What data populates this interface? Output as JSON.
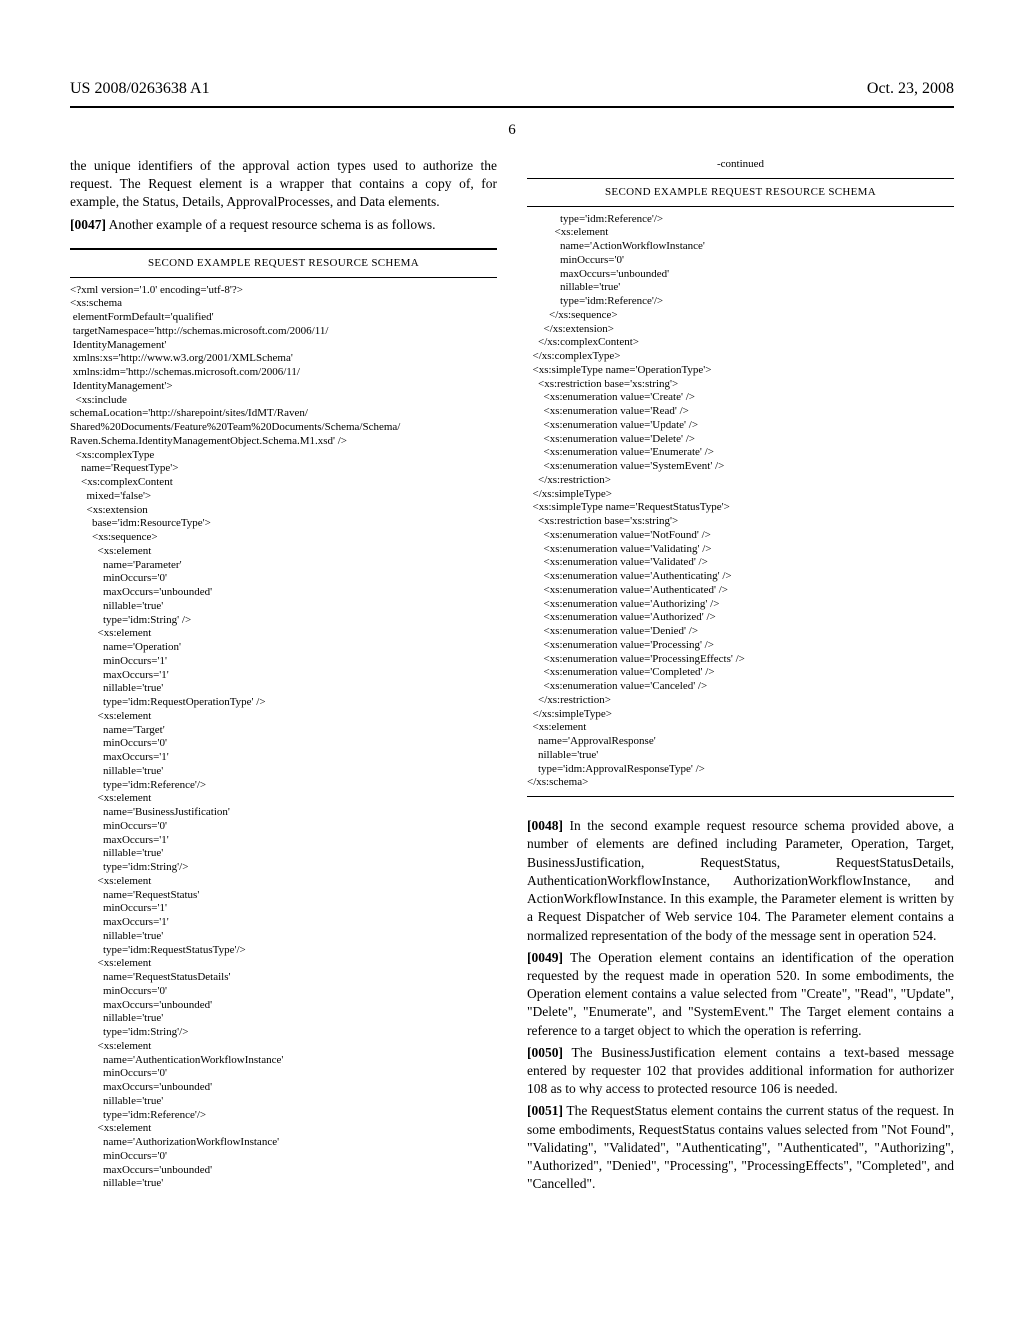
{
  "header": {
    "left": "US 2008/0263638 A1",
    "right": "Oct. 23, 2008"
  },
  "page_number": "6",
  "left_column": {
    "intro_para": "the unique identifiers of the approval action types used to authorize the request. The Request element is a wrapper that contains a copy of, for example, the Status, Details, ApprovalProcesses, and Data elements.",
    "para_0047_num": "[0047]",
    "para_0047": "   Another example of a request resource schema is as follows.",
    "schema_title": "SECOND EXAMPLE REQUEST RESOURCE SCHEMA",
    "code": "<?xml version='1.0' encoding='utf-8'?>\n<xs:schema\n elementFormDefault='qualified'\n targetNamespace='http://schemas.microsoft.com/2006/11/\n IdentityManagement'\n xmlns:xs='http://www.w3.org/2001/XMLSchema'\n xmlns:idm='http://schemas.microsoft.com/2006/11/\n IdentityManagement'>\n  <xs:include\nschemaLocation='http://sharepoint/sites/IdMT/Raven/\nShared%20Documents/Feature%20Team%20Documents/Schema/Schema/\nRaven.Schema.IdentityManagementObject.Schema.M1.xsd' />\n  <xs:complexType\n    name='RequestType'>\n    <xs:complexContent\n      mixed='false'>\n      <xs:extension\n        base='idm:ResourceType'>\n        <xs:sequence>\n          <xs:element\n            name='Parameter'\n            minOccurs='0'\n            maxOccurs='unbounded'\n            nillable='true'\n            type='idm:String' />\n          <xs:element\n            name='Operation'\n            minOccurs='1'\n            maxOccurs='1'\n            nillable='true'\n            type='idm:RequestOperationType' />\n          <xs:element\n            name='Target'\n            minOccurs='0'\n            maxOccurs='1'\n            nillable='true'\n            type='idm:Reference'/>\n          <xs:element\n            name='BusinessJustification'\n            minOccurs='0'\n            maxOccurs='1'\n            nillable='true'\n            type='idm:String'/>\n          <xs:element\n            name='RequestStatus'\n            minOccurs='1'\n            maxOccurs='1'\n            nillable='true'\n            type='idm:RequestStatusType'/>\n          <xs:element\n            name='RequestStatusDetails'\n            minOccurs='0'\n            maxOccurs='unbounded'\n            nillable='true'\n            type='idm:String'/>\n          <xs:element\n            name='AuthenticationWorkflowInstance'\n            minOccurs='0'\n            maxOccurs='unbounded'\n            nillable='true'\n            type='idm:Reference'/>\n          <xs:element\n            name='AuthorizationWorkflowInstance'\n            minOccurs='0'\n            maxOccurs='unbounded'\n            nillable='true'"
  },
  "right_column": {
    "continued": "-continued",
    "schema_title": "SECOND EXAMPLE REQUEST RESOURCE SCHEMA",
    "code": "            type='idm:Reference'/>\n          <xs:element\n            name='ActionWorkflowInstance'\n            minOccurs='0'\n            maxOccurs='unbounded'\n            nillable='true'\n            type='idm:Reference'/>\n        </xs:sequence>\n      </xs:extension>\n    </xs:complexContent>\n  </xs:complexType>\n  <xs:simpleType name='OperationType'>\n    <xs:restriction base='xs:string'>\n      <xs:enumeration value='Create' />\n      <xs:enumeration value='Read' />\n      <xs:enumeration value='Update' />\n      <xs:enumeration value='Delete' />\n      <xs:enumeration value='Enumerate' />\n      <xs:enumeration value='SystemEvent' />\n    </xs:restriction>\n  </xs:simpleType>\n  <xs:simpleType name='RequestStatusType'>\n    <xs:restriction base='xs:string'>\n      <xs:enumeration value='NotFound' />\n      <xs:enumeration value='Validating' />\n      <xs:enumeration value='Validated' />\n      <xs:enumeration value='Authenticating' />\n      <xs:enumeration value='Authenticated' />\n      <xs:enumeration value='Authorizing' />\n      <xs:enumeration value='Authorized' />\n      <xs:enumeration value='Denied' />\n      <xs:enumeration value='Processing' />\n      <xs:enumeration value='ProcessingEffects' />\n      <xs:enumeration value='Completed' />\n      <xs:enumeration value='Canceled' />\n    </xs:restriction>\n  </xs:simpleType>\n  <xs:element\n    name='ApprovalResponse'\n    nillable='true'\n    type='idm:ApprovalResponseType' />\n</xs:schema>",
    "para_0048_num": "[0048]",
    "para_0048": "   In the second example request resource schema provided above, a number of elements are defined including Parameter, Operation, Target, BusinessJustification, RequestStatus, RequestStatusDetails, AuthenticationWorkflowInstance, AuthorizationWorkflowInstance, and ActionWorkflowInstance. In this example, the Parameter element is written by a Request Dispatcher of Web service 104. The Parameter element contains a normalized representation of the body of the message sent in operation 524.",
    "para_0049_num": "[0049]",
    "para_0049": "   The Operation element contains an identification of the operation requested by the request made in operation 520. In some embodiments, the Operation element contains a value selected from \"Create\", \"Read\", \"Update\", \"Delete\", \"Enumerate\", and \"SystemEvent.\" The Target element contains a reference to a target object to which the operation is referring.",
    "para_0050_num": "[0050]",
    "para_0050": "   The BusinessJustification element contains a text-based message entered by requester 102 that provides additional information for authorizer 108 as to why access to protected resource 106 is needed.",
    "para_0051_num": "[0051]",
    "para_0051": "   The RequestStatus element contains the current status of the request. In some embodiments, RequestStatus contains values selected from \"Not Found\", \"Validating\", \"Validated\", \"Authenticating\", \"Authenticated\", \"Authorizing\", \"Authorized\", \"Denied\", \"Processing\", \"ProcessingEffects\", \"Completed\", and \"Cancelled\"."
  }
}
